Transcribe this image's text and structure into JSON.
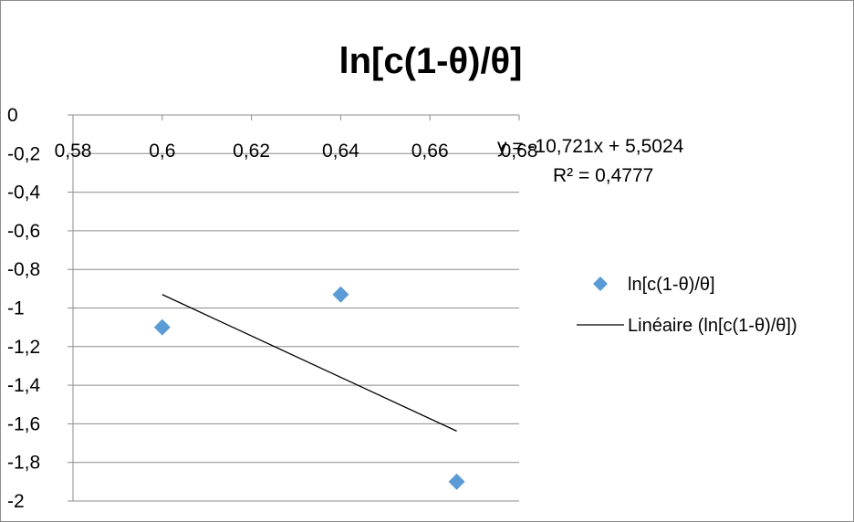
{
  "chart_data": {
    "type": "scatter",
    "title": "ln[c(1-θ)/θ]",
    "xlim": [
      0.58,
      0.68
    ],
    "ylim": [
      -2,
      0
    ],
    "x_ticks": [
      "0,58",
      "0,6",
      "0,62",
      "0,64",
      "0,66",
      "0,68"
    ],
    "y_ticks": [
      "0",
      "-0,2",
      "-0,4",
      "-0,6",
      "-0,8",
      "-1",
      "-1,2",
      "-1,4",
      "-1,6",
      "-1,8",
      "-2"
    ],
    "grid": "horizontal",
    "series": [
      {
        "name": "ln[c(1-θ)/θ]",
        "marker": "diamond",
        "color": "#5b9bd5",
        "points": [
          {
            "x": 0.6,
            "y": -1.1
          },
          {
            "x": 0.64,
            "y": -0.93
          },
          {
            "x": 0.666,
            "y": -1.9
          }
        ]
      }
    ],
    "trendline": {
      "name": "Linéaire (ln[c(1-θ)/θ])",
      "type": "linear",
      "color": "#000000",
      "x_range": [
        0.6,
        0.666
      ],
      "slope": -10.721,
      "intercept": 5.5024,
      "equation_line1": "y = -10,721x + 5,5024",
      "equation_line2": "R² = 0,4777"
    },
    "legend": {
      "position": "right",
      "entries": [
        "ln[c(1-θ)/θ]",
        "Linéaire (ln[c(1-θ)/θ])"
      ]
    }
  }
}
